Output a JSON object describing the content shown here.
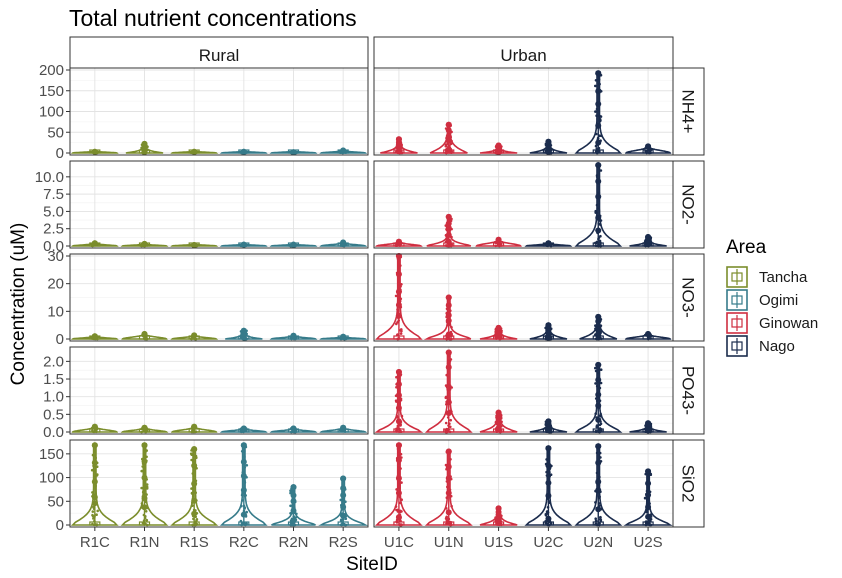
{
  "chart_data": {
    "type": "violin",
    "title": "Total nutrient concentrations",
    "xlabel": "SiteID",
    "ylabel": "Concentration (uM)",
    "facet_columns": [
      "Rural",
      "Urban"
    ],
    "facet_rows": [
      "NH4+",
      "NO2-",
      "NO3-",
      "PO43-",
      "SiO2"
    ],
    "x_sites": {
      "Rural": [
        "R1C",
        "R1N",
        "R1S",
        "R2C",
        "R2N",
        "R2S"
      ],
      "Urban": [
        "U1C",
        "U1N",
        "U1S",
        "U2C",
        "U2N",
        "U2S"
      ]
    },
    "legend": {
      "title": "Area",
      "position": "right",
      "items": [
        {
          "name": "Tancha",
          "color": "#7b8d2c"
        },
        {
          "name": "Ogimi",
          "color": "#367b8a"
        },
        {
          "name": "Ginowan",
          "color": "#cf2e40"
        },
        {
          "name": "Nago",
          "color": "#1b2c4d"
        }
      ]
    },
    "site_area": {
      "R1C": "Tancha",
      "R1N": "Tancha",
      "R1S": "Tancha",
      "R2C": "Ogimi",
      "R2N": "Ogimi",
      "R2S": "Ogimi",
      "U1C": "Ginowan",
      "U1N": "Ginowan",
      "U1S": "Ginowan",
      "U2C": "Nago",
      "U2N": "Nago",
      "U2S": "Nago"
    },
    "panels": [
      {
        "row": "NH4+",
        "ylim": [
          0,
          200
        ],
        "yticks": [
          0,
          50,
          100,
          150,
          200
        ],
        "max": {
          "R1C": 3,
          "R1N": 22,
          "R1S": 3,
          "R2C": 3,
          "R2N": 2,
          "R2S": 6,
          "U1C": 33,
          "U1N": 68,
          "U1S": 18,
          "U2C": 27,
          "U2N": 192,
          "U2S": 16
        }
      },
      {
        "row": "NO2-",
        "ylim": [
          0,
          12
        ],
        "yticks": [
          0.0,
          2.5,
          5.0,
          7.5,
          10.0
        ],
        "max": {
          "R1C": 0.4,
          "R1N": 0.3,
          "R1S": 0.15,
          "R2C": 0.2,
          "R2N": 0.2,
          "R2S": 0.5,
          "U1C": 0.6,
          "U1N": 4.2,
          "U1S": 0.9,
          "U2C": 0.4,
          "U2N": 11.7,
          "U2S": 1.3
        }
      },
      {
        "row": "NO3-",
        "ylim": [
          0,
          30
        ],
        "yticks": [
          0,
          10,
          20,
          30
        ],
        "max": {
          "R1C": 1.0,
          "R1N": 1.8,
          "R1S": 1.3,
          "R2C": 3.0,
          "R2N": 1.2,
          "R2S": 0.8,
          "U1C": 30,
          "U1N": 15,
          "U1S": 4.0,
          "U2C": 5.0,
          "U2N": 8.0,
          "U2S": 1.8
        }
      },
      {
        "row": "PO43-",
        "ylim": [
          0,
          2.35
        ],
        "yticks": [
          0.0,
          0.5,
          1.0,
          1.5,
          2.0
        ],
        "max": {
          "R1C": 0.15,
          "R1N": 0.12,
          "R1S": 0.15,
          "R2C": 0.1,
          "R2N": 0.1,
          "R2S": 0.12,
          "U1C": 1.7,
          "U1N": 2.25,
          "U1S": 0.55,
          "U2C": 0.3,
          "U2N": 1.9,
          "U2S": 0.25
        }
      },
      {
        "row": "SiO2",
        "ylim": [
          0,
          175
        ],
        "yticks": [
          0,
          50,
          100,
          150
        ],
        "max": {
          "R1C": 168,
          "R1N": 168,
          "R1S": 160,
          "R2C": 168,
          "R2N": 80,
          "R2S": 98,
          "U1C": 168,
          "U1N": 155,
          "U1S": 35,
          "U2C": 162,
          "U2N": 166,
          "U2S": 113
        }
      }
    ]
  }
}
